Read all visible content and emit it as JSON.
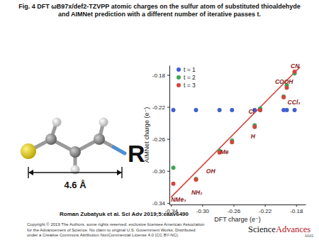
{
  "page": {
    "title_lines": [
      "Fig. 4 DFT ωB97x/def2-TZVPP atomic charges on the sulfur atom of substituted thioaldehyde",
      "and AIMNet prediction with a different number of iterative passes t."
    ],
    "atom_label": "R",
    "distance": "4.6 Å",
    "citation": "Roman Zubatyuk et al. Sci Adv 2019;5:eaav6490",
    "copyright_lines": [
      "Copyright © 2019 The Authors, some rights reserved; exclusive licensee American Association",
      "for the Advancement of Science. No claim to original U.S. Government Works. Distributed",
      "under a Creative Commons Attribution NonCommercial License 4.0 (CC BY-NC)."
    ],
    "logo_parts": [
      "Science",
      "Advances"
    ],
    "logo_sub": "AAAS"
  },
  "chart_data": {
    "type": "scatter",
    "x_label": "DFT charge (e⁻)",
    "y_label": "AIMNet charge (e⁻)",
    "x": [
      -0.337,
      -0.308,
      -0.278,
      -0.262,
      -0.233,
      -0.226,
      -0.196,
      -0.192,
      -0.182
    ],
    "series": [
      {
        "name": "t = 1",
        "color": "#3f5fcf",
        "marker": "circle",
        "values": [
          -0.224,
          -0.224,
          -0.224,
          -0.224,
          -0.224,
          -0.224,
          -0.224,
          -0.224,
          -0.224
        ]
      },
      {
        "name": "t = 2",
        "color": "#3aa655",
        "marker": "circle",
        "values": [
          -0.296,
          -0.31,
          -0.275,
          -0.262,
          -0.243,
          -0.222,
          -0.207,
          -0.193,
          -0.178
        ]
      },
      {
        "name": "t = 3",
        "color": "#d4453b",
        "marker": "circle",
        "values": [
          -0.316,
          -0.311,
          -0.277,
          -0.264,
          -0.245,
          -0.224,
          -0.208,
          -0.196,
          -0.176
        ]
      },
      {
        "type": "line",
        "color": "#d4453b",
        "line_style": "solid",
        "x": [
          -0.34,
          -0.175
        ],
        "values": [
          -0.333,
          -0.17
        ]
      }
    ],
    "annotations": [
      {
        "text": "NMe₃",
        "x": -0.34,
        "y": -0.336
      },
      {
        "text": "NH₂",
        "x": -0.314,
        "y": -0.327
      },
      {
        "text": "OH",
        "x": -0.295,
        "y": -0.3
      },
      {
        "text": "Me",
        "x": -0.277,
        "y": -0.276
      },
      {
        "text": "H",
        "x": -0.238,
        "y": -0.257
      },
      {
        "text": "Cl",
        "x": -0.241,
        "y": -0.226
      },
      {
        "text": "CCl₃",
        "x": -0.191,
        "y": -0.214
      },
      {
        "text": "COOH",
        "x": -0.207,
        "y": -0.188
      },
      {
        "text": "CN",
        "x": -0.187,
        "y": -0.169
      }
    ],
    "xlim": [
      -0.342,
      -0.168
    ],
    "ylim": [
      -0.342,
      -0.168
    ],
    "xticks": [
      -0.34,
      {
        "value": -0.3,
        "label": "-0.30"
      },
      -0.26,
      -0.22,
      -0.18
    ],
    "yticks": [
      -0.34,
      {
        "value": -0.3,
        "label": "-0.30"
      },
      -0.26,
      -0.22,
      -0.18
    ],
    "grid": false,
    "legend": "upper-left"
  }
}
